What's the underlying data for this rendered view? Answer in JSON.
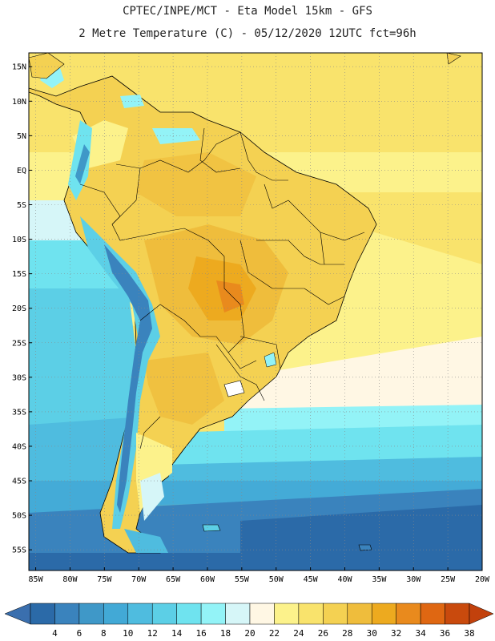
{
  "title_line1": "CPTEC/INPE/MCT -  Eta Model 15km - GFS",
  "title_line2": "2 Metre Temperature (C) - 05/12/2020 12UTC fct=96h",
  "map": {
    "lon_range": [
      -86,
      -20
    ],
    "lat_range": [
      -58,
      17
    ],
    "lat_ticks": [
      {
        "value": 15,
        "label": "15N"
      },
      {
        "value": 10,
        "label": "10N"
      },
      {
        "value": 5,
        "label": "5N"
      },
      {
        "value": 0,
        "label": "EQ"
      },
      {
        "value": -5,
        "label": "5S"
      },
      {
        "value": -10,
        "label": "10S"
      },
      {
        "value": -15,
        "label": "15S"
      },
      {
        "value": -20,
        "label": "20S"
      },
      {
        "value": -25,
        "label": "25S"
      },
      {
        "value": -30,
        "label": "30S"
      },
      {
        "value": -35,
        "label": "35S"
      },
      {
        "value": -40,
        "label": "40S"
      },
      {
        "value": -45,
        "label": "45S"
      },
      {
        "value": -50,
        "label": "50S"
      },
      {
        "value": -55,
        "label": "55S"
      }
    ],
    "lon_ticks": [
      {
        "value": -85,
        "label": "85W"
      },
      {
        "value": -80,
        "label": "80W"
      },
      {
        "value": -75,
        "label": "75W"
      },
      {
        "value": -70,
        "label": "70W"
      },
      {
        "value": -65,
        "label": "65W"
      },
      {
        "value": -60,
        "label": "60W"
      },
      {
        "value": -55,
        "label": "55W"
      },
      {
        "value": -50,
        "label": "50W"
      },
      {
        "value": -45,
        "label": "45W"
      },
      {
        "value": -40,
        "label": "40W"
      },
      {
        "value": -35,
        "label": "35W"
      },
      {
        "value": -30,
        "label": "30W"
      },
      {
        "value": -25,
        "label": "25W"
      },
      {
        "value": -20,
        "label": "20W"
      }
    ],
    "gridlines": true
  },
  "colorbar": {
    "labels": [
      "4",
      "6",
      "8",
      "10",
      "12",
      "14",
      "16",
      "18",
      "20",
      "22",
      "24",
      "26",
      "28",
      "30",
      "32",
      "34",
      "36",
      "38"
    ],
    "colors": [
      "#2b6aa8",
      "#3a83bd",
      "#3f98c8",
      "#42a9d6",
      "#4fbcdf",
      "#5ccfe6",
      "#6fe3ef",
      "#93f3f7",
      "#d6f6f8",
      "#fff7e4",
      "#fcf28b",
      "#f9e36c",
      "#f4d152",
      "#efbd3c",
      "#edaa1f",
      "#e98a1d",
      "#df6712",
      "#c94a0d"
    ],
    "low_arrow_color": "#3a6fae",
    "high_arrow_color": "#c2410c"
  }
}
